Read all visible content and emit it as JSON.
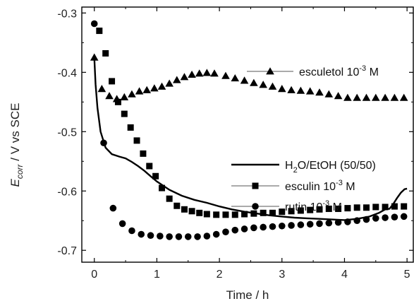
{
  "chart_data": {
    "type": "scatter",
    "x_label_main": "Time / h",
    "y_label_main": "E",
    "y_label_sub": "corr",
    "y_label_rest": " / V vs SCE",
    "xlim": [
      -0.2,
      5.1
    ],
    "ylim": [
      -0.72,
      -0.29
    ],
    "x_ticks": [
      0,
      1,
      2,
      3,
      4,
      5
    ],
    "y_ticks": [
      -0.7,
      -0.6,
      -0.5,
      -0.4,
      -0.3
    ],
    "grid": false,
    "legend_position": "right",
    "series": [
      {
        "key": "esculetol",
        "name_main": "esculetol 10",
        "name_sup": "-3",
        "name_tail": " M",
        "marker": "triangle",
        "color": "#000000",
        "points": [
          [
            0,
            -0.375
          ],
          [
            0.12,
            -0.428
          ],
          [
            0.24,
            -0.44
          ],
          [
            0.36,
            -0.445
          ],
          [
            0.48,
            -0.442
          ],
          [
            0.6,
            -0.437
          ],
          [
            0.72,
            -0.432
          ],
          [
            0.84,
            -0.43
          ],
          [
            0.96,
            -0.427
          ],
          [
            1.08,
            -0.424
          ],
          [
            1.2,
            -0.419
          ],
          [
            1.32,
            -0.413
          ],
          [
            1.44,
            -0.408
          ],
          [
            1.56,
            -0.404
          ],
          [
            1.68,
            -0.402
          ],
          [
            1.8,
            -0.401
          ],
          [
            1.92,
            -0.402
          ],
          [
            2.1,
            -0.406
          ],
          [
            2.25,
            -0.41
          ],
          [
            2.4,
            -0.414
          ],
          [
            2.55,
            -0.418
          ],
          [
            2.7,
            -0.421
          ],
          [
            2.85,
            -0.424
          ],
          [
            3.0,
            -0.428
          ],
          [
            3.15,
            -0.43
          ],
          [
            3.3,
            -0.431
          ],
          [
            3.45,
            -0.432
          ],
          [
            3.6,
            -0.434
          ],
          [
            3.75,
            -0.437
          ],
          [
            3.9,
            -0.44
          ],
          [
            4.05,
            -0.443
          ],
          [
            4.2,
            -0.443
          ],
          [
            4.35,
            -0.443
          ],
          [
            4.5,
            -0.443
          ],
          [
            4.65,
            -0.443
          ],
          [
            4.8,
            -0.443
          ],
          [
            4.95,
            -0.443
          ]
        ]
      },
      {
        "key": "h2o_etoh",
        "name_main": "H",
        "name_sub": "2",
        "name_tail": "O/EtOH (50/50)",
        "marker": "line",
        "color": "#000000",
        "points": [
          [
            0.0,
            -0.375
          ],
          [
            0.02,
            -0.42
          ],
          [
            0.05,
            -0.46
          ],
          [
            0.1,
            -0.5
          ],
          [
            0.18,
            -0.527
          ],
          [
            0.28,
            -0.538
          ],
          [
            0.4,
            -0.542
          ],
          [
            0.5,
            -0.545
          ],
          [
            0.6,
            -0.551
          ],
          [
            0.7,
            -0.558
          ],
          [
            0.8,
            -0.566
          ],
          [
            0.9,
            -0.575
          ],
          [
            1.0,
            -0.584
          ],
          [
            1.2,
            -0.598
          ],
          [
            1.4,
            -0.608
          ],
          [
            1.6,
            -0.615
          ],
          [
            1.8,
            -0.62
          ],
          [
            2.0,
            -0.626
          ],
          [
            2.2,
            -0.631
          ],
          [
            2.4,
            -0.635
          ],
          [
            2.6,
            -0.638
          ],
          [
            2.8,
            -0.641
          ],
          [
            3.0,
            -0.643
          ],
          [
            3.2,
            -0.645
          ],
          [
            3.4,
            -0.646
          ],
          [
            3.6,
            -0.647
          ],
          [
            3.8,
            -0.648
          ],
          [
            4.0,
            -0.649
          ],
          [
            4.2,
            -0.647
          ],
          [
            4.4,
            -0.643
          ],
          [
            4.55,
            -0.637
          ],
          [
            4.65,
            -0.631
          ],
          [
            4.72,
            -0.63
          ],
          [
            4.78,
            -0.622
          ],
          [
            4.84,
            -0.612
          ],
          [
            4.9,
            -0.603
          ],
          [
            4.96,
            -0.597
          ],
          [
            5.0,
            -0.596
          ]
        ]
      },
      {
        "key": "esculin",
        "name_main": "esculin 10",
        "name_sup": "-3",
        "name_tail": " M",
        "marker": "square",
        "color": "#000000",
        "points": [
          [
            0.08,
            -0.33
          ],
          [
            0.18,
            -0.368
          ],
          [
            0.28,
            -0.415
          ],
          [
            0.38,
            -0.45
          ],
          [
            0.48,
            -0.47
          ],
          [
            0.58,
            -0.493
          ],
          [
            0.68,
            -0.515
          ],
          [
            0.78,
            -0.537
          ],
          [
            0.88,
            -0.558
          ],
          [
            0.98,
            -0.575
          ],
          [
            1.08,
            -0.595
          ],
          [
            1.2,
            -0.613
          ],
          [
            1.32,
            -0.625
          ],
          [
            1.44,
            -0.631
          ],
          [
            1.56,
            -0.634
          ],
          [
            1.68,
            -0.637
          ],
          [
            1.8,
            -0.639
          ],
          [
            1.95,
            -0.64
          ],
          [
            2.1,
            -0.64
          ],
          [
            2.25,
            -0.64
          ],
          [
            2.4,
            -0.639
          ],
          [
            2.55,
            -0.638
          ],
          [
            2.7,
            -0.637
          ],
          [
            2.85,
            -0.637
          ],
          [
            3.0,
            -0.635
          ],
          [
            3.15,
            -0.634
          ],
          [
            3.3,
            -0.633
          ],
          [
            3.45,
            -0.632
          ],
          [
            3.6,
            -0.631
          ],
          [
            3.75,
            -0.63
          ],
          [
            3.9,
            -0.63
          ],
          [
            4.05,
            -0.629
          ],
          [
            4.2,
            -0.628
          ],
          [
            4.35,
            -0.628
          ],
          [
            4.5,
            -0.627
          ],
          [
            4.65,
            -0.627
          ],
          [
            4.8,
            -0.626
          ],
          [
            4.95,
            -0.626
          ]
        ]
      },
      {
        "key": "rutin",
        "name_main": "rutin 10",
        "name_sup": "-3",
        "name_tail": " M",
        "marker": "circle",
        "color": "#000000",
        "points": [
          [
            0.0,
            -0.318
          ],
          [
            0.15,
            -0.519
          ],
          [
            0.3,
            -0.629
          ],
          [
            0.45,
            -0.655
          ],
          [
            0.6,
            -0.667
          ],
          [
            0.75,
            -0.673
          ],
          [
            0.9,
            -0.675
          ],
          [
            1.05,
            -0.676
          ],
          [
            1.2,
            -0.677
          ],
          [
            1.35,
            -0.677
          ],
          [
            1.5,
            -0.677
          ],
          [
            1.65,
            -0.677
          ],
          [
            1.8,
            -0.676
          ],
          [
            1.95,
            -0.673
          ],
          [
            2.1,
            -0.669
          ],
          [
            2.25,
            -0.666
          ],
          [
            2.4,
            -0.664
          ],
          [
            2.55,
            -0.662
          ],
          [
            2.7,
            -0.661
          ],
          [
            2.85,
            -0.66
          ],
          [
            3.0,
            -0.659
          ],
          [
            3.15,
            -0.658
          ],
          [
            3.3,
            -0.657
          ],
          [
            3.45,
            -0.656
          ],
          [
            3.6,
            -0.655
          ],
          [
            3.75,
            -0.654
          ],
          [
            3.9,
            -0.653
          ],
          [
            4.05,
            -0.652
          ],
          [
            4.2,
            -0.65
          ],
          [
            4.35,
            -0.648
          ],
          [
            4.5,
            -0.646
          ],
          [
            4.65,
            -0.645
          ],
          [
            4.8,
            -0.644
          ],
          [
            4.95,
            -0.643
          ]
        ]
      }
    ]
  }
}
